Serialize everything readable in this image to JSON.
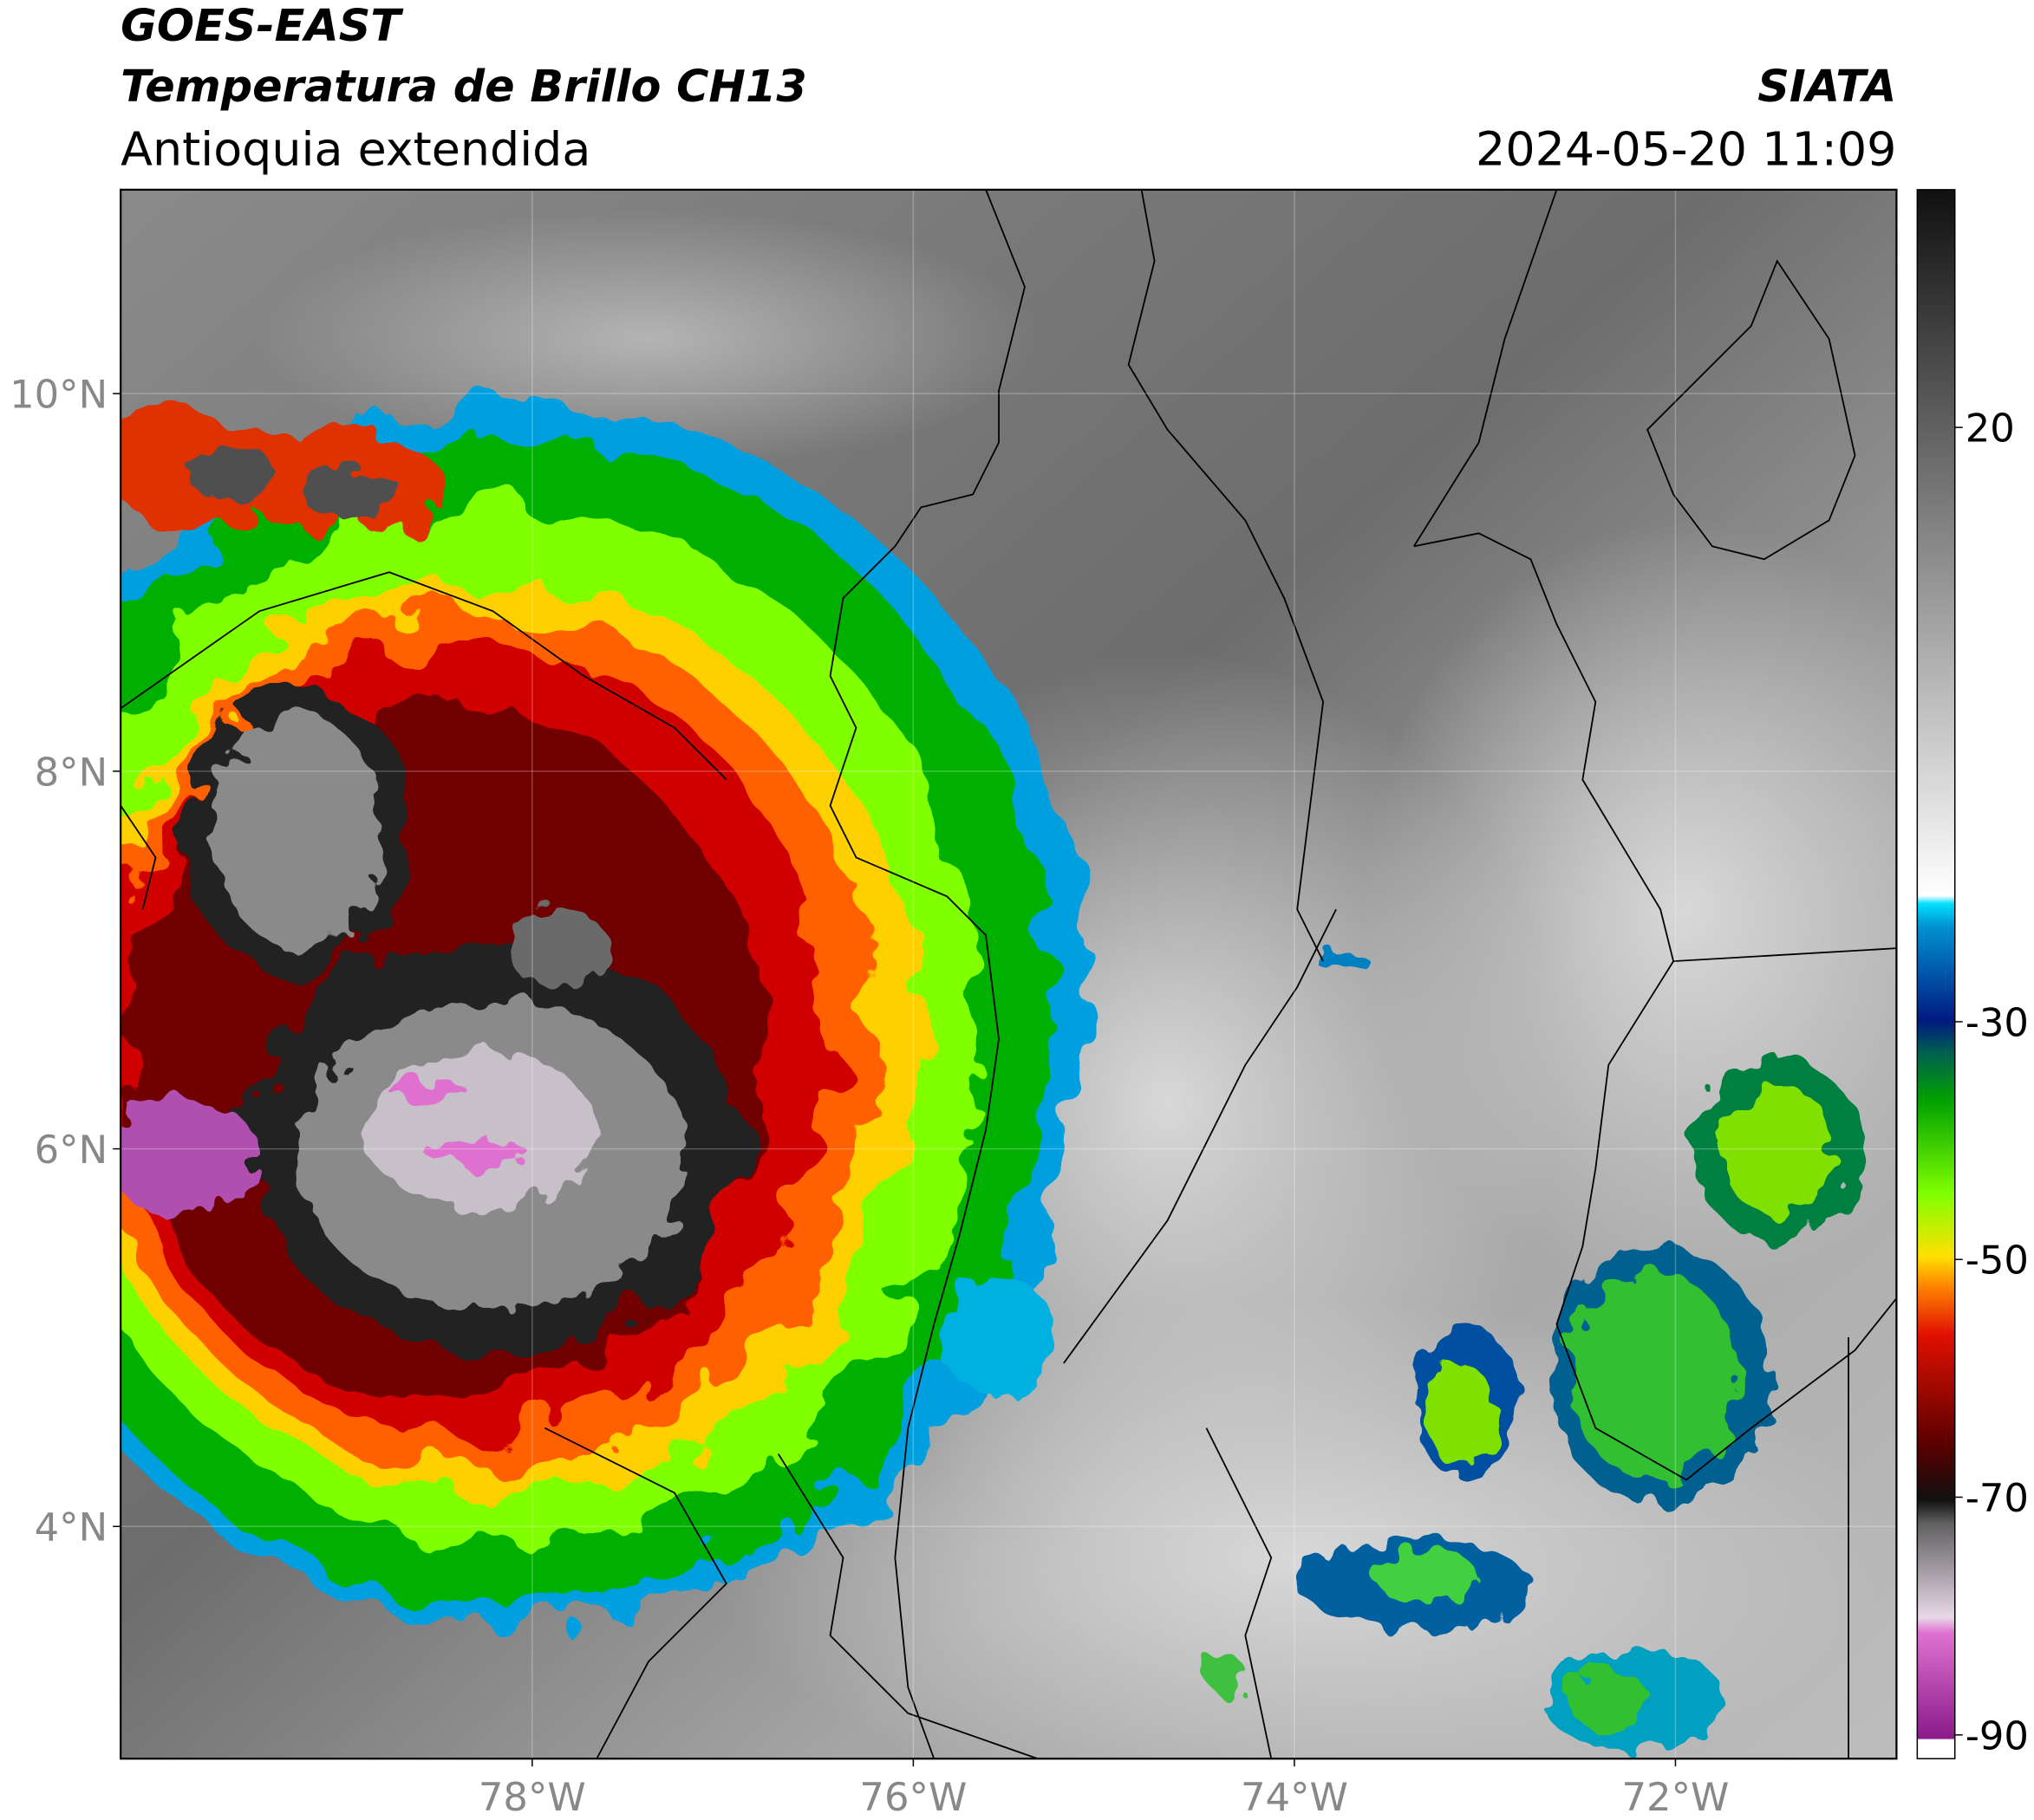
{
  "chart_data": {
    "type": "map",
    "title": "GOES-EAST",
    "subtitle": "Temperatura de Brillo CH13",
    "region": "Antioquia extendida",
    "source": "SIATA",
    "datetime": "2024-05-20 11:09",
    "xlim": [
      -80.16,
      -70.84
    ],
    "ylim": [
      2.77,
      11.08
    ],
    "xticks": [
      {
        "value": -78,
        "label": "78°W"
      },
      {
        "value": -76,
        "label": "76°W"
      },
      {
        "value": -74,
        "label": "74°W"
      },
      {
        "value": -72,
        "label": "72°W"
      }
    ],
    "yticks": [
      {
        "value": 4,
        "label": "4°N"
      },
      {
        "value": 6,
        "label": "6°N"
      },
      {
        "value": 8,
        "label": "8°N"
      },
      {
        "value": 10,
        "label": "10°N"
      }
    ],
    "colorbar": {
      "lim": [
        -92,
        40
      ],
      "ticks": [
        -90,
        -70,
        -50,
        -30,
        20
      ]
    },
    "grid": true
  }
}
